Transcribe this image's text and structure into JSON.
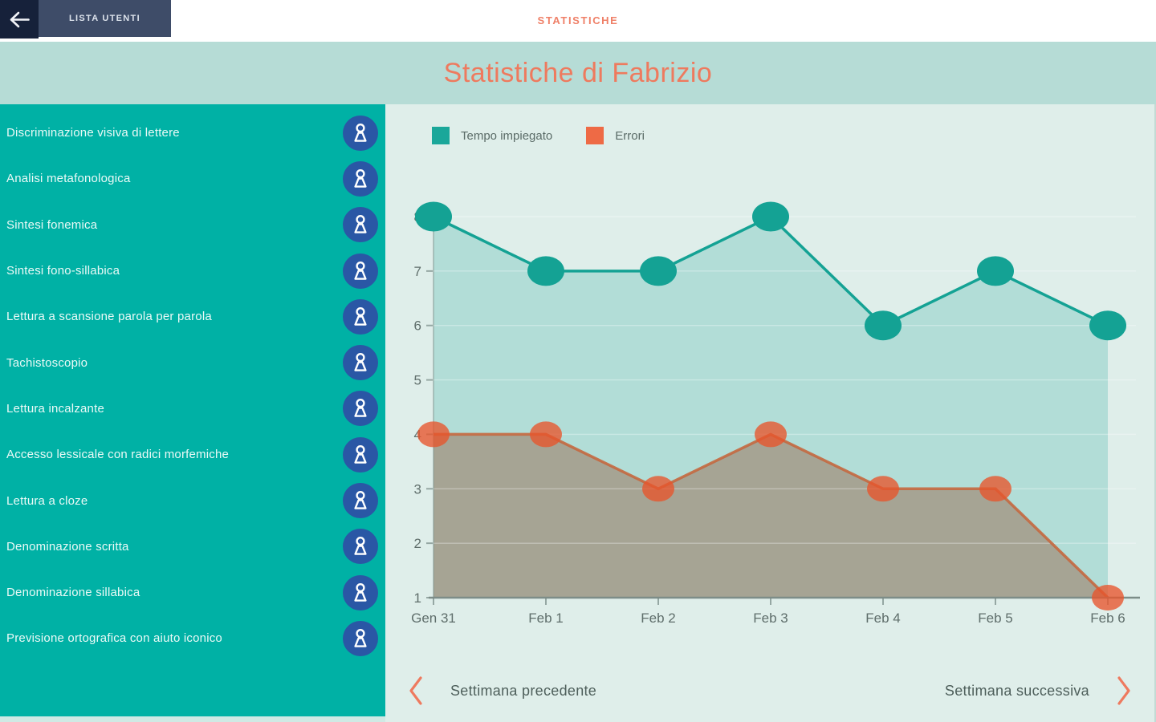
{
  "topbar": {
    "nav_title": "STATISTICHE",
    "tab_label": "LISTA UTENTI"
  },
  "header": {
    "title": "Statistiche di Fabrizio"
  },
  "sidebar": {
    "items": [
      "Discriminazione visiva di lettere",
      "Analisi metafonologica",
      "Sintesi fonemica",
      "Sintesi fono-sillabica",
      "Lettura a scansione parola per parola",
      "Tachistoscopio",
      "Lettura incalzante",
      "Accesso lessicale con radici morfemiche",
      "Lettura a cloze",
      "Denominazione scritta",
      "Denominazione sillabica",
      "Previsione ortografica con aiuto iconico"
    ]
  },
  "chart_data": {
    "type": "line",
    "title": "",
    "xlabel": "",
    "ylabel": "",
    "categories": [
      "Gen 31",
      "Feb 1",
      "Feb 2",
      "Feb 3",
      "Feb 4",
      "Feb 5",
      "Feb 6"
    ],
    "series": [
      {
        "name": "Tempo impiegato",
        "values": [
          8,
          7,
          7,
          8,
          6,
          7,
          6
        ],
        "line_color": "#14a294",
        "point_color": "#14a294",
        "point_opacity": 1,
        "fill": "rgba(20,162,148,0.22)",
        "legend_color": "#1aa79a",
        "point_rx": 23,
        "point_ry": 18.5
      },
      {
        "name": "Errori",
        "values": [
          4,
          4,
          3,
          4,
          3,
          3,
          1
        ],
        "line_color": "#c4683f",
        "point_color": "#e8552b",
        "point_opacity": 0.78,
        "fill": "rgba(150,96,66,0.45)",
        "legend_color": "#ee6a45",
        "point_rx": 20,
        "point_ry": 16
      }
    ],
    "ylim": [
      1,
      8
    ],
    "yticks": [
      1,
      2,
      3,
      4,
      5,
      6,
      7,
      8
    ],
    "grid": true,
    "area_fill": true,
    "legend_position": "top-left"
  },
  "footer_nav": {
    "prev_label": "Settimana precedente",
    "next_label": "Settimana successiva"
  },
  "colors": {
    "accent_orange": "#ee7a5e",
    "topbar_title_orange": "#ef8068",
    "sidebar_teal": "#00b1a5",
    "icon_blue": "#2a57a5",
    "chart_bg": "#dfeeea",
    "band_bg": "#b6dcd6",
    "navy_dark": "#16213a",
    "navy_tab": "#3e4c68",
    "axis_text": "#5f6e6b",
    "nav_text": "#4e5f5b"
  }
}
